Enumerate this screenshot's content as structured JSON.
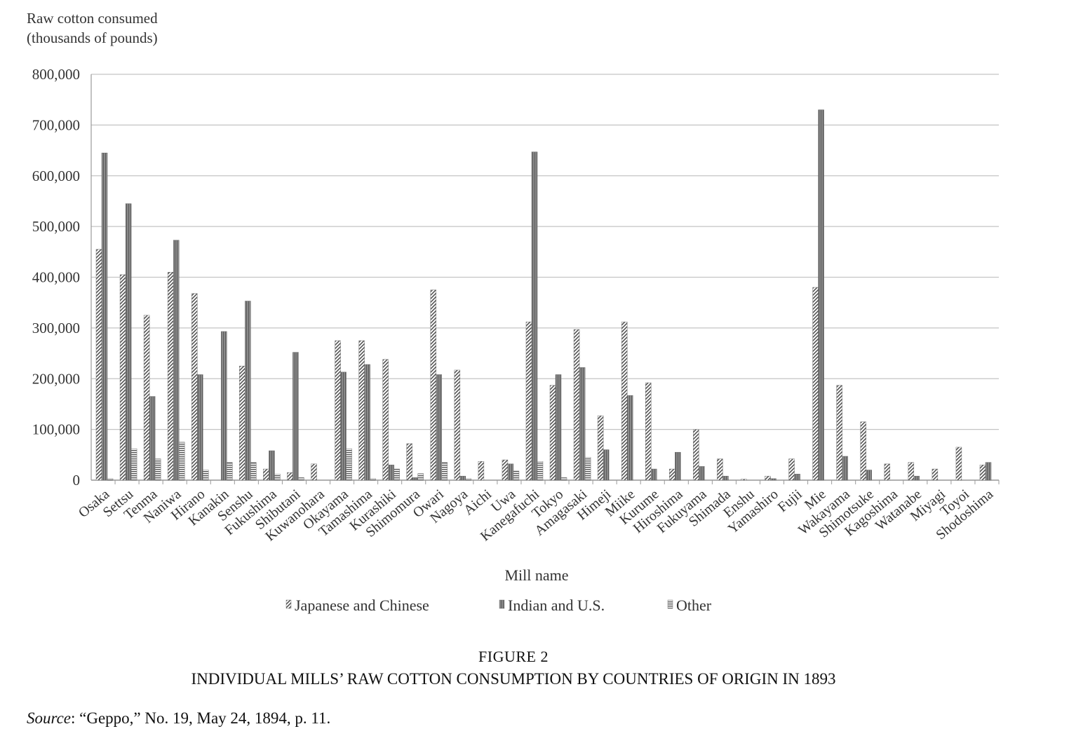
{
  "chart_data": {
    "type": "bar",
    "ylabel_line1": "Raw cotton consumed",
    "ylabel_line2": "(thousands of pounds)",
    "xlabel": "Mill name",
    "ylim": [
      0,
      800000
    ],
    "yticks": [
      0,
      100000,
      200000,
      300000,
      400000,
      500000,
      600000,
      700000,
      800000
    ],
    "ytick_labels": [
      "0",
      "100,000",
      "200,000",
      "300,000",
      "400,000",
      "500,000",
      "600,000",
      "700,000",
      "800,000"
    ],
    "grid": true,
    "legend_position": "bottom",
    "categories": [
      "Osaka",
      "Settsu",
      "Tenma",
      "Naniwa",
      "Hirano",
      "Kanakin",
      "Senshu",
      "Fukushima",
      "Shibutani",
      "Kuwanohara",
      "Okayama",
      "Tamashima",
      "Kurashiki",
      "Shimomura",
      "Owari",
      "Nagoya",
      "Aichi",
      "Uwa",
      "Kanegafuchi",
      "Tokyo",
      "Amagasaki",
      "Himeji",
      "Miike",
      "Kurume",
      "Hiroshima",
      "Fukuyama",
      "Shimada",
      "Enshu",
      "Yamashiro",
      "Fujii",
      "Mie",
      "Wakayama",
      "Shimotsuke",
      "Kagoshima",
      "Watanabe",
      "Miyagi",
      "Toyoi",
      "Shodoshima"
    ],
    "series": [
      {
        "name": "Japanese and Chinese",
        "pattern": "diagonal",
        "values": [
          455000,
          405000,
          325000,
          410000,
          368000,
          0,
          225000,
          22000,
          15000,
          32000,
          275000,
          275000,
          238000,
          72000,
          375000,
          217000,
          37000,
          40000,
          312000,
          187000,
          297000,
          127000,
          312000,
          192000,
          22000,
          100000,
          42000,
          2000,
          8000,
          42000,
          380000,
          187000,
          115000,
          32000,
          35000,
          22000,
          65000,
          30000
        ]
      },
      {
        "name": "Indian and U.S.",
        "pattern": "solid",
        "values": [
          645000,
          545000,
          165000,
          473000,
          208000,
          293000,
          353000,
          58000,
          252000,
          0,
          213000,
          228000,
          30000,
          5000,
          208000,
          8000,
          0,
          32000,
          647000,
          208000,
          222000,
          60000,
          167000,
          22000,
          55000,
          27000,
          8000,
          0,
          3000,
          12000,
          730000,
          47000,
          20000,
          0,
          8000,
          0,
          0,
          35000
        ]
      },
      {
        "name": "Other",
        "pattern": "horizontal",
        "values": [
          3000,
          62000,
          42000,
          75000,
          20000,
          35000,
          35000,
          12000,
          5000,
          0,
          62000,
          3000,
          22000,
          13000,
          35000,
          3000,
          0,
          18000,
          37000,
          5000,
          45000,
          0,
          0,
          0,
          0,
          0,
          0,
          0,
          0,
          0,
          0,
          0,
          0,
          0,
          0,
          0,
          0,
          0
        ]
      }
    ]
  },
  "figure_label": "FIGURE 2",
  "figure_title": "INDIVIDUAL MILLS’ RAW COTTON CONSUMPTION BY COUNTRIES OF ORIGIN IN 1893",
  "source_prefix": "Source",
  "source_text": ": “Geppo,” No. 19, May 24, 1894, p. 11.",
  "colors": {
    "bar_fill": "#8a8a8a",
    "bar_dark": "#4a4a4a",
    "grid": "#c4c4c4",
    "axis": "#9a9a9a"
  }
}
